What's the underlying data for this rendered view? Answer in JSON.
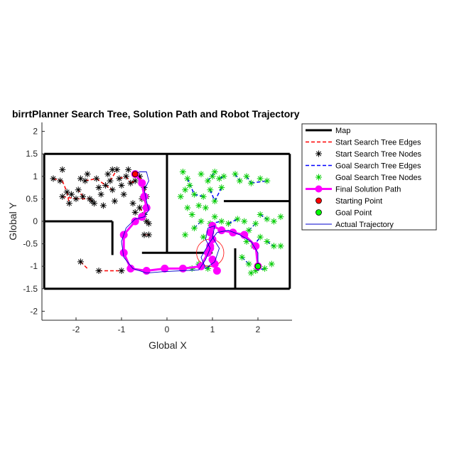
{
  "chart_data": {
    "type": "line",
    "title": "birrtPlanner Search Tree, Solution Path and Robot Trajectory",
    "xlabel": "Global X",
    "ylabel": "Global Y",
    "xlim": [
      -2.75,
      2.75
    ],
    "ylim": [
      -2.2,
      2.2
    ],
    "xticks": [
      "-2",
      "-1",
      "0",
      "1",
      "2"
    ],
    "xtick_values": [
      -2,
      -1,
      0,
      1,
      2
    ],
    "yticks": [
      "2",
      "1.5",
      "1",
      "0.5",
      "0",
      "-0.5",
      "-1",
      "-1.5",
      "-2"
    ],
    "ytick_values": [
      2,
      1.5,
      1,
      0.5,
      0,
      -0.5,
      -1,
      -1.5,
      -2
    ],
    "grid": false,
    "legend_position": "top-right outside",
    "legend": [
      {
        "label": "Map",
        "style": "map"
      },
      {
        "label": "Start Search Tree Edges",
        "style": "start-edge"
      },
      {
        "label": "Start Search Tree Nodes",
        "style": "start-node"
      },
      {
        "label": "Goal Search Tree Edges",
        "style": "goal-edge"
      },
      {
        "label": "Goal Search Tree Nodes",
        "style": "goal-node"
      },
      {
        "label": "Final Solution Path",
        "style": "path"
      },
      {
        "label": "Starting Point",
        "style": "start-point"
      },
      {
        "label": "Goal Point",
        "style": "goal-point"
      },
      {
        "label": "Actual Trajectory",
        "style": "trajectory"
      }
    ],
    "colors": {
      "map": "#000000",
      "start_edges": "#ff0000",
      "start_nodes": "#000000",
      "goal_edges": "#0000ff",
      "goal_nodes": "#00cc00",
      "path": "#ff00ff",
      "start_point": "#ff0000",
      "goal_point": "#00ff00",
      "trajectory": "#0000cc"
    },
    "map_segments": [
      [
        [
          -2.7,
          1.5
        ],
        [
          2.7,
          1.5
        ]
      ],
      [
        [
          -2.7,
          -1.5
        ],
        [
          2.7,
          -1.5
        ]
      ],
      [
        [
          -2.7,
          -1.5
        ],
        [
          -2.7,
          1.5
        ]
      ],
      [
        [
          2.7,
          -1.5
        ],
        [
          2.7,
          1.5
        ]
      ],
      [
        [
          -2.7,
          0
        ],
        [
          -1.2,
          0
        ]
      ],
      [
        [
          -1.2,
          0
        ],
        [
          -1.2,
          -0.75
        ]
      ],
      [
        [
          0,
          1.5
        ],
        [
          0,
          -0.7
        ]
      ],
      [
        [
          -0.55,
          -0.7
        ],
        [
          1.0,
          -0.7
        ]
      ],
      [
        [
          1.25,
          0.45
        ],
        [
          2.7,
          0.45
        ]
      ],
      [
        [
          1.5,
          -1.5
        ],
        [
          1.5,
          -0.6
        ]
      ]
    ],
    "start_nodes": [
      [
        -2.5,
        0.95
      ],
      [
        -2.3,
        1.15
      ],
      [
        -2.35,
        0.9
      ],
      [
        -2.2,
        0.65
      ],
      [
        -2.3,
        0.55
      ],
      [
        -2.1,
        0.6
      ],
      [
        -2.0,
        0.5
      ],
      [
        -2.15,
        0.4
      ],
      [
        -1.95,
        0.7
      ],
      [
        -1.85,
        0.55
      ],
      [
        -1.9,
        0.95
      ],
      [
        -1.8,
        0.9
      ],
      [
        -1.7,
        0.5
      ],
      [
        -1.6,
        0.4
      ],
      [
        -1.55,
        0.95
      ],
      [
        -1.5,
        0.75
      ],
      [
        -1.45,
        0.6
      ],
      [
        -1.4,
        0.35
      ],
      [
        -1.35,
        0.8
      ],
      [
        -1.3,
        1.05
      ],
      [
        -1.25,
        0.9
      ],
      [
        -1.2,
        0.7
      ],
      [
        -1.1,
        1.15
      ],
      [
        -1.05,
        0.95
      ],
      [
        -1.0,
        0.8
      ],
      [
        -0.95,
        0.6
      ],
      [
        -0.9,
        1.0
      ],
      [
        -0.85,
        1.15
      ],
      [
        -0.8,
        0.85
      ],
      [
        -0.75,
        0.4
      ],
      [
        -0.7,
        0.9
      ],
      [
        -0.6,
        1.0
      ],
      [
        -0.55,
        0.85
      ],
      [
        -0.5,
        0.75
      ],
      [
        -0.45,
        0.55
      ],
      [
        -0.55,
        0.5
      ],
      [
        -0.6,
        0.3
      ],
      [
        -0.5,
        0.15
      ],
      [
        -0.45,
        0.0
      ],
      [
        -0.4,
        -0.05
      ],
      [
        -0.5,
        -0.3
      ],
      [
        -0.4,
        -0.3
      ],
      [
        -1.75,
        1.05
      ],
      [
        -1.65,
        0.45
      ],
      [
        -1.15,
        0.45
      ],
      [
        -1.2,
        1.15
      ],
      [
        -1.9,
        -0.9
      ],
      [
        -1.5,
        -1.1
      ],
      [
        -1.0,
        -1.1
      ],
      [
        -0.7,
        0.2
      ]
    ],
    "start_edges": [
      [
        [
          -2.5,
          0.95
        ],
        [
          -2.3,
          0.9
        ]
      ],
      [
        [
          -2.3,
          0.9
        ],
        [
          -2.2,
          0.65
        ]
      ],
      [
        [
          -2.2,
          0.65
        ],
        [
          -2.15,
          0.4
        ]
      ],
      [
        [
          -2.3,
          0.55
        ],
        [
          -2.0,
          0.5
        ]
      ],
      [
        [
          -2.0,
          0.5
        ],
        [
          -1.7,
          0.5
        ]
      ],
      [
        [
          -1.7,
          0.5
        ],
        [
          -1.6,
          0.4
        ]
      ],
      [
        [
          -1.85,
          0.55
        ],
        [
          -1.95,
          0.7
        ]
      ],
      [
        [
          -1.8,
          0.9
        ],
        [
          -1.55,
          0.95
        ]
      ],
      [
        [
          -1.55,
          0.95
        ],
        [
          -1.35,
          0.8
        ]
      ],
      [
        [
          -1.35,
          0.8
        ],
        [
          -1.2,
          0.7
        ]
      ],
      [
        [
          -1.25,
          0.9
        ],
        [
          -1.1,
          1.15
        ]
      ],
      [
        [
          -1.05,
          0.95
        ],
        [
          -0.9,
          1.0
        ]
      ],
      [
        [
          -0.9,
          1.0
        ],
        [
          -0.8,
          0.85
        ]
      ],
      [
        [
          -0.8,
          0.85
        ],
        [
          -0.7,
          0.9
        ]
      ],
      [
        [
          -0.6,
          1.0
        ],
        [
          -0.55,
          0.85
        ]
      ],
      [
        [
          -0.55,
          0.85
        ],
        [
          -0.5,
          0.75
        ]
      ],
      [
        [
          -0.5,
          0.75
        ],
        [
          -0.45,
          0.55
        ]
      ],
      [
        [
          -0.6,
          0.3
        ],
        [
          -0.5,
          0.15
        ]
      ],
      [
        [
          -0.45,
          0.0
        ],
        [
          -0.4,
          -0.05
        ]
      ],
      [
        [
          -0.5,
          -0.3
        ],
        [
          -0.4,
          -0.3
        ]
      ],
      [
        [
          -1.9,
          -0.9
        ],
        [
          -1.75,
          -1.05
        ]
      ],
      [
        [
          -1.5,
          -1.1
        ],
        [
          -1.25,
          -1.1
        ]
      ],
      [
        [
          -1.25,
          -1.1
        ],
        [
          -1.0,
          -1.1
        ]
      ]
    ],
    "goal_nodes": [
      [
        0.35,
        1.1
      ],
      [
        0.45,
        0.95
      ],
      [
        0.5,
        0.8
      ],
      [
        0.6,
        0.6
      ],
      [
        0.75,
        1.05
      ],
      [
        0.8,
        0.55
      ],
      [
        0.7,
        0.35
      ],
      [
        0.9,
        0.9
      ],
      [
        1.0,
        1.0
      ],
      [
        1.05,
        1.1
      ],
      [
        1.15,
        0.95
      ],
      [
        1.25,
        1.0
      ],
      [
        1.2,
        0.75
      ],
      [
        0.95,
        0.7
      ],
      [
        0.85,
        0.3
      ],
      [
        1.05,
        0.45
      ],
      [
        1.5,
        1.05
      ],
      [
        1.6,
        0.9
      ],
      [
        1.75,
        1.0
      ],
      [
        1.85,
        0.85
      ],
      [
        2.05,
        0.95
      ],
      [
        2.2,
        0.9
      ],
      [
        0.45,
        0.3
      ],
      [
        0.55,
        0.15
      ],
      [
        0.4,
        -0.3
      ],
      [
        0.6,
        -0.15
      ],
      [
        0.75,
        0.0
      ],
      [
        0.8,
        -0.35
      ],
      [
        0.95,
        -0.05
      ],
      [
        1.05,
        0.1
      ],
      [
        1.2,
        0.0
      ],
      [
        1.35,
        -0.05
      ],
      [
        1.55,
        0.05
      ],
      [
        1.7,
        0.0
      ],
      [
        1.8,
        -0.2
      ],
      [
        1.95,
        -0.05
      ],
      [
        2.05,
        0.15
      ],
      [
        2.2,
        0.05
      ],
      [
        2.35,
        0.0
      ],
      [
        2.5,
        0.1
      ],
      [
        1.75,
        -0.45
      ],
      [
        1.9,
        -0.55
      ],
      [
        2.05,
        -0.35
      ],
      [
        2.2,
        -0.45
      ],
      [
        2.35,
        -0.55
      ],
      [
        2.5,
        -0.55
      ],
      [
        1.65,
        -0.8
      ],
      [
        1.8,
        -0.95
      ],
      [
        1.95,
        -1.1
      ],
      [
        2.15,
        -1.05
      ],
      [
        2.3,
        -0.95
      ],
      [
        1.85,
        -1.15
      ],
      [
        0.55,
        -1.05
      ],
      [
        0.7,
        -0.95
      ],
      [
        0.9,
        -1.05
      ],
      [
        1.0,
        -0.85
      ],
      [
        0.3,
        0.55
      ],
      [
        0.4,
        0.7
      ]
    ],
    "goal_edges": [
      [
        [
          0.45,
          0.95
        ],
        [
          0.6,
          0.6
        ]
      ],
      [
        [
          0.6,
          0.6
        ],
        [
          0.8,
          0.55
        ]
      ],
      [
        [
          0.9,
          0.9
        ],
        [
          1.05,
          1.1
        ]
      ],
      [
        [
          1.15,
          0.95
        ],
        [
          1.25,
          1.0
        ]
      ],
      [
        [
          1.5,
          1.05
        ],
        [
          1.6,
          0.9
        ]
      ],
      [
        [
          1.75,
          1.0
        ],
        [
          1.85,
          0.85
        ]
      ],
      [
        [
          1.85,
          0.85
        ],
        [
          2.2,
          0.9
        ]
      ],
      [
        [
          0.95,
          0.7
        ],
        [
          1.05,
          0.45
        ]
      ],
      [
        [
          0.6,
          -0.15
        ],
        [
          0.75,
          0.0
        ]
      ],
      [
        [
          0.95,
          -0.05
        ],
        [
          1.2,
          0.0
        ]
      ],
      [
        [
          1.35,
          -0.05
        ],
        [
          1.55,
          0.05
        ]
      ],
      [
        [
          1.8,
          -0.2
        ],
        [
          1.95,
          -0.05
        ]
      ],
      [
        [
          2.05,
          0.15
        ],
        [
          2.2,
          0.05
        ]
      ],
      [
        [
          1.9,
          -0.55
        ],
        [
          2.05,
          -0.35
        ]
      ],
      [
        [
          2.2,
          -0.45
        ],
        [
          2.35,
          -0.55
        ]
      ],
      [
        [
          1.65,
          -0.8
        ],
        [
          1.8,
          -0.95
        ]
      ],
      [
        [
          1.95,
          -1.1
        ],
        [
          2.15,
          -1.05
        ]
      ],
      [
        [
          0.55,
          -1.05
        ],
        [
          0.7,
          -0.95
        ]
      ],
      [
        [
          0.9,
          -1.05
        ],
        [
          1.0,
          -0.85
        ]
      ],
      [
        [
          1.05,
          0.45
        ],
        [
          1.2,
          0.75
        ]
      ]
    ],
    "solution_path": [
      [
        -0.7,
        1.05
      ],
      [
        -0.55,
        0.85
      ],
      [
        -0.5,
        0.55
      ],
      [
        -0.45,
        0.3
      ],
      [
        -0.55,
        0.1
      ],
      [
        -0.7,
        0.0
      ],
      [
        -0.95,
        -0.3
      ],
      [
        -0.95,
        -0.7
      ],
      [
        -0.8,
        -1.05
      ],
      [
        -0.45,
        -1.1
      ],
      [
        -0.05,
        -1.05
      ],
      [
        0.35,
        -1.05
      ],
      [
        0.75,
        -1.0
      ],
      [
        0.9,
        -0.7
      ],
      [
        0.95,
        -0.55
      ],
      [
        1.0,
        -0.4
      ],
      [
        0.95,
        -0.25
      ],
      [
        1.0,
        -0.1
      ],
      [
        1.2,
        -0.2
      ],
      [
        1.45,
        -0.25
      ],
      [
        1.7,
        -0.3
      ],
      [
        1.95,
        -0.55
      ],
      [
        2.0,
        -1.0
      ]
    ],
    "solution_extra": [
      [
        0.95,
        -0.6
      ],
      [
        1.0,
        -0.85
      ],
      [
        1.05,
        -0.95
      ],
      [
        1.1,
        -1.1
      ]
    ],
    "start_point": [
      -0.7,
      1.05
    ],
    "goal_point": [
      2.0,
      -1.0
    ],
    "trajectory": [
      [
        -0.7,
        1.05
      ],
      [
        -0.6,
        1.1
      ],
      [
        -0.45,
        1.1
      ],
      [
        -0.4,
        0.9
      ],
      [
        -0.5,
        0.7
      ],
      [
        -0.45,
        0.45
      ],
      [
        -0.4,
        0.25
      ],
      [
        -0.5,
        0.1
      ],
      [
        -0.7,
        0.05
      ],
      [
        -0.9,
        -0.15
      ],
      [
        -1.0,
        -0.45
      ],
      [
        -0.95,
        -0.8
      ],
      [
        -0.75,
        -1.05
      ],
      [
        -0.45,
        -1.15
      ],
      [
        -0.1,
        -1.12
      ],
      [
        0.3,
        -1.1
      ],
      [
        0.7,
        -1.08
      ],
      [
        0.85,
        -0.85
      ],
      [
        0.95,
        -0.6
      ],
      [
        0.85,
        -0.4
      ],
      [
        0.9,
        -0.15
      ],
      [
        1.05,
        -0.1
      ],
      [
        1.0,
        -0.35
      ],
      [
        1.15,
        -0.6
      ],
      [
        1.05,
        -0.9
      ],
      [
        0.85,
        -1.05
      ],
      [
        0.75,
        -0.8
      ],
      [
        0.95,
        -0.45
      ],
      [
        1.1,
        -0.25
      ],
      [
        1.35,
        -0.2
      ],
      [
        1.6,
        -0.3
      ],
      [
        1.85,
        -0.45
      ],
      [
        2.0,
        -0.7
      ],
      [
        2.0,
        -1.0
      ]
    ],
    "radius_circle": {
      "center": [
        0.95,
        -0.7
      ],
      "r": 0.3
    }
  }
}
